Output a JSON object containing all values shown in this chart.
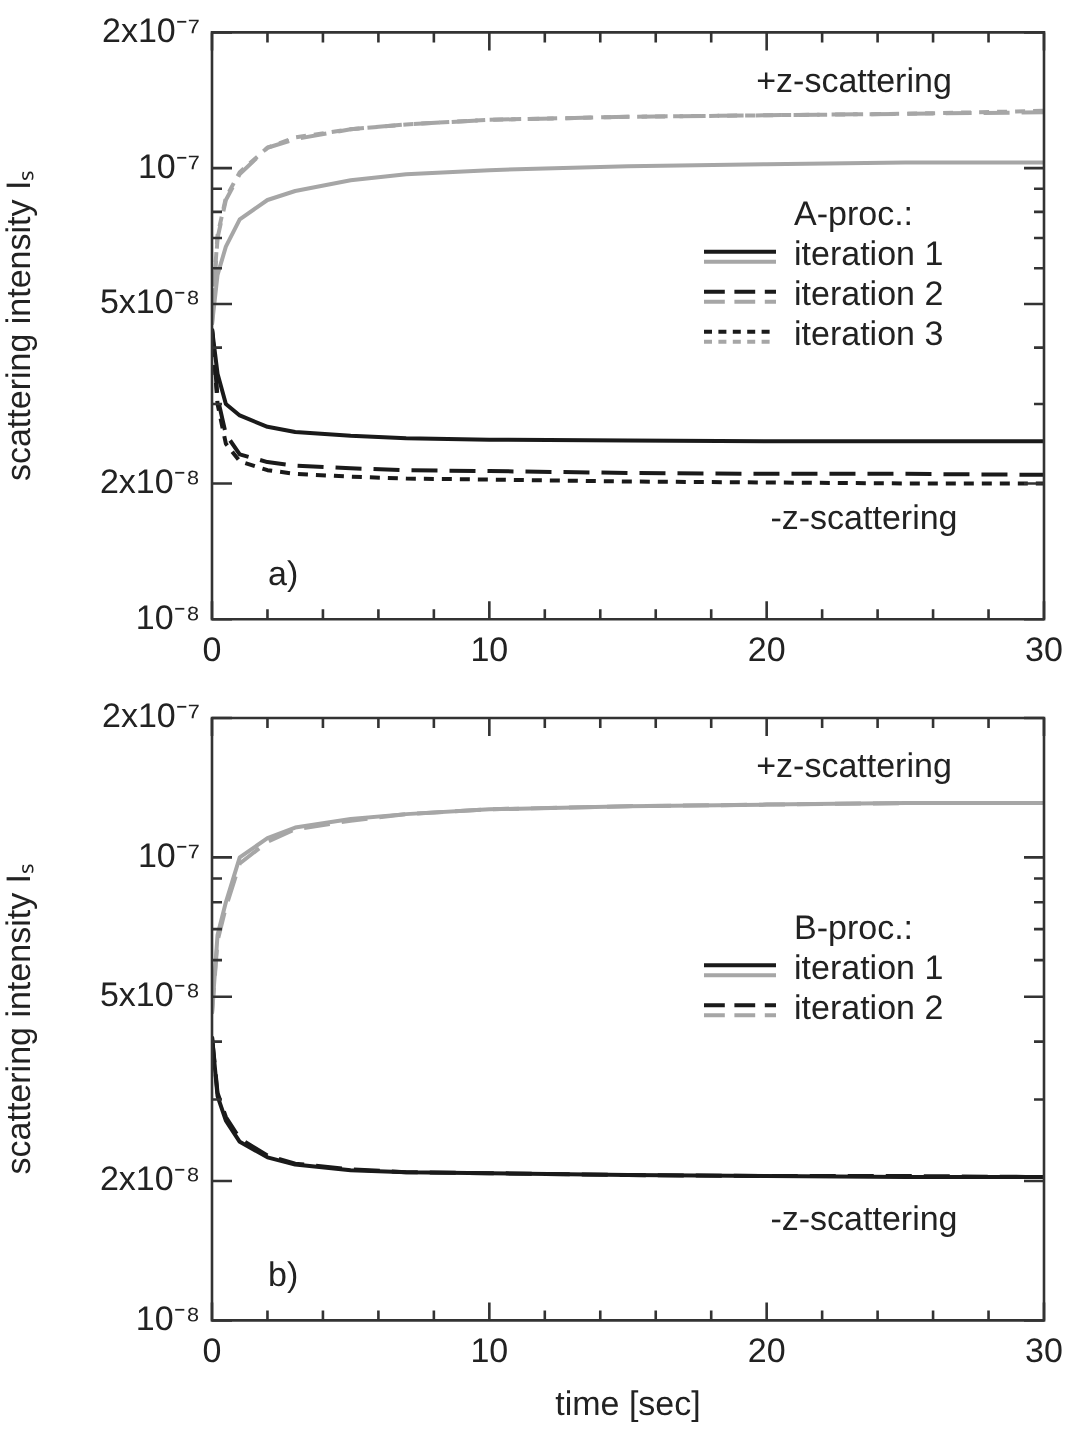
{
  "chart_data": [
    {
      "type": "line",
      "ylabel": "scattering intensity Iₛ",
      "log": "y",
      "grid": false,
      "legend": "right",
      "marker": "none",
      "legend_title": "A-proc.:",
      "x": [
        0,
        0.2,
        0.5,
        1,
        2,
        3,
        5,
        7,
        10,
        15,
        20,
        25,
        30
      ],
      "xlim": [
        0,
        30
      ],
      "xticks": [
        0,
        {
          "value": 2,
          "label": null
        },
        {
          "value": 4,
          "label": null
        },
        {
          "value": 6,
          "label": null
        },
        {
          "value": 8,
          "label": null
        },
        10,
        {
          "value": 12,
          "label": null
        },
        {
          "value": 14,
          "label": null
        },
        {
          "value": 16,
          "label": null
        },
        {
          "value": 18,
          "label": null
        },
        20,
        {
          "value": 22,
          "label": null
        },
        {
          "value": 24,
          "label": null
        },
        {
          "value": 26,
          "label": null
        },
        {
          "value": 28,
          "label": null
        },
        30
      ],
      "ylim": [
        1e-08,
        2e-07
      ],
      "yticks": [
        {
          "value": 1e-08,
          "label": "10⁻⁸"
        },
        {
          "value": 2e-08,
          "label": "2x10⁻⁸"
        },
        {
          "value": 3e-08,
          "label": null
        },
        {
          "value": 4e-08,
          "label": null
        },
        {
          "value": 5e-08,
          "label": "5x10⁻⁸"
        },
        {
          "value": 6e-08,
          "label": null
        },
        {
          "value": 7e-08,
          "label": null
        },
        {
          "value": 8e-08,
          "label": null
        },
        {
          "value": 9e-08,
          "label": null
        },
        {
          "value": 1e-07,
          "label": "10⁻⁷"
        },
        {
          "value": 2e-07,
          "label": "2x10⁻⁷"
        }
      ],
      "series": [
        {
          "name": "iteration 1",
          "color": "#1a1a1a",
          "line_style": "solid",
          "values": [
            4.4e-08,
            3.5e-08,
            3e-08,
            2.83e-08,
            2.67e-08,
            2.6e-08,
            2.55e-08,
            2.52e-08,
            2.5e-08,
            2.49e-08,
            2.48e-08,
            2.48e-08,
            2.48e-08
          ]
        },
        {
          "color": "#a6a6a6",
          "line_style": "solid",
          "values": [
            4.5e-08,
            5.8e-08,
            6.7e-08,
            7.7e-08,
            8.5e-08,
            8.9e-08,
            9.4e-08,
            9.7e-08,
            9.9e-08,
            1.01e-07,
            1.02e-07,
            1.03e-07,
            1.03e-07
          ]
        },
        {
          "name": "iteration 2",
          "color": "#1a1a1a",
          "line_style": "dashed",
          "values": [
            4.4e-08,
            3.1e-08,
            2.57e-08,
            2.32e-08,
            2.23e-08,
            2.19e-08,
            2.16e-08,
            2.14e-08,
            2.13e-08,
            2.11e-08,
            2.1e-08,
            2.1e-08,
            2.09e-08
          ]
        },
        {
          "color": "#a6a6a6",
          "line_style": "dashed",
          "values": [
            4.5e-08,
            7e-08,
            8.5e-08,
            9.7e-08,
            1.11e-07,
            1.16e-07,
            1.22e-07,
            1.25e-07,
            1.28e-07,
            1.3e-07,
            1.31e-07,
            1.32e-07,
            1.33e-07
          ]
        },
        {
          "name": "iteration 3",
          "color": "#1a1a1a",
          "line_style": "dotted",
          "values": [
            4.4e-08,
            3e-08,
            2.45e-08,
            2.24e-08,
            2.14e-08,
            2.1e-08,
            2.07e-08,
            2.05e-08,
            2.04e-08,
            2.02e-08,
            2.01e-08,
            2e-08,
            2e-08
          ]
        },
        {
          "color": "#a6a6a6",
          "line_style": "dotted",
          "values": [
            4.7e-08,
            7.1e-08,
            8.6e-08,
            9.8e-08,
            1.11e-07,
            1.17e-07,
            1.22e-07,
            1.25e-07,
            1.28e-07,
            1.3e-07,
            1.31e-07,
            1.32e-07,
            1.34e-07
          ]
        }
      ],
      "annotations": [
        "+z-scattering",
        "-z-scattering",
        "a)"
      ]
    },
    {
      "type": "line",
      "ylabel": "scattering intensity Iₛ",
      "xlabel": "time [sec]",
      "log": "y",
      "grid": false,
      "legend": "right",
      "marker": "none",
      "legend_title": "B-proc.:",
      "x": [
        0,
        0.2,
        0.5,
        1,
        2,
        3,
        5,
        7,
        10,
        15,
        20,
        25,
        30
      ],
      "xlim": [
        0,
        30
      ],
      "xticks": [
        0,
        {
          "value": 2,
          "label": null
        },
        {
          "value": 4,
          "label": null
        },
        {
          "value": 6,
          "label": null
        },
        {
          "value": 8,
          "label": null
        },
        10,
        {
          "value": 12,
          "label": null
        },
        {
          "value": 14,
          "label": null
        },
        {
          "value": 16,
          "label": null
        },
        {
          "value": 18,
          "label": null
        },
        20,
        {
          "value": 22,
          "label": null
        },
        {
          "value": 24,
          "label": null
        },
        {
          "value": 26,
          "label": null
        },
        {
          "value": 28,
          "label": null
        },
        30
      ],
      "ylim": [
        1e-08,
        2e-07
      ],
      "yticks": [
        {
          "value": 1e-08,
          "label": "10⁻⁸"
        },
        {
          "value": 2e-08,
          "label": "2x10⁻⁸"
        },
        {
          "value": 3e-08,
          "label": null
        },
        {
          "value": 4e-08,
          "label": null
        },
        {
          "value": 5e-08,
          "label": "5x10⁻⁸"
        },
        {
          "value": 6e-08,
          "label": null
        },
        {
          "value": 7e-08,
          "label": null
        },
        {
          "value": 8e-08,
          "label": null
        },
        {
          "value": 9e-08,
          "label": null
        },
        {
          "value": 1e-07,
          "label": "10⁻⁷"
        },
        {
          "value": 2e-07,
          "label": "2x10⁻⁷"
        }
      ],
      "series": [
        {
          "name": "iteration 1",
          "color": "#1a1a1a",
          "line_style": "solid",
          "values": [
            4.1e-08,
            3.05e-08,
            2.7e-08,
            2.43e-08,
            2.25e-08,
            2.17e-08,
            2.11e-08,
            2.09e-08,
            2.08e-08,
            2.06e-08,
            2.05e-08,
            2.04e-08,
            2.04e-08
          ]
        },
        {
          "color": "#a6a6a6",
          "line_style": "solid",
          "values": [
            4.6e-08,
            6.8e-08,
            8e-08,
            1e-07,
            1.1e-07,
            1.16e-07,
            1.21e-07,
            1.24e-07,
            1.27e-07,
            1.29e-07,
            1.3e-07,
            1.31e-07,
            1.31e-07
          ]
        },
        {
          "name": "iteration 2",
          "color": "#1a1a1a",
          "line_style": "dashed",
          "values": [
            4.1e-08,
            3.1e-08,
            2.75e-08,
            2.47e-08,
            2.27e-08,
            2.18e-08,
            2.12e-08,
            2.09e-08,
            2.08e-08,
            2.06e-08,
            2.05e-08,
            2.05e-08,
            2.04e-08
          ]
        },
        {
          "color": "#a6a6a6",
          "line_style": "dashed",
          "values": [
            4.6e-08,
            6.6e-08,
            7.8e-08,
            9.7e-08,
            1.08e-07,
            1.15e-07,
            1.2e-07,
            1.24e-07,
            1.27e-07,
            1.29e-07,
            1.3e-07,
            1.31e-07,
            1.31e-07
          ]
        }
      ],
      "annotations": [
        "+z-scattering",
        "-z-scattering",
        "b)"
      ]
    }
  ]
}
